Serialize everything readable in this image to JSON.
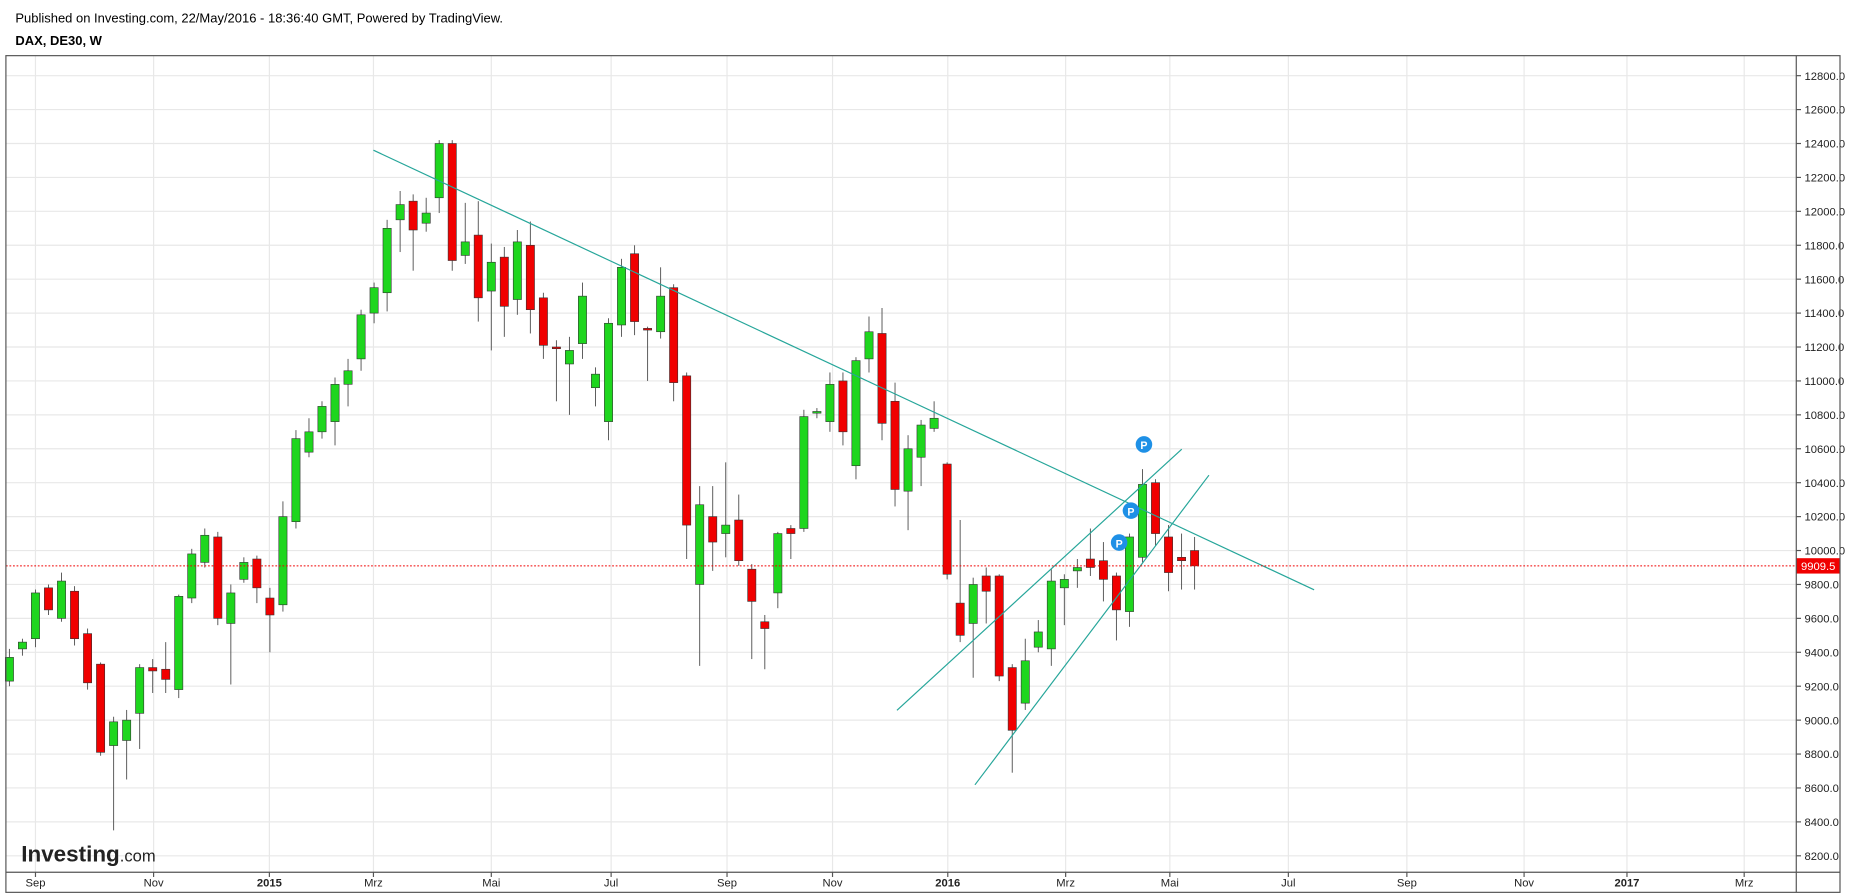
{
  "header": {
    "published": "Published on Investing.com, 22/May/2016 - 18:36:40 GMT, Powered by TradingView.",
    "symbol": "DAX, DE30, W"
  },
  "chart_data": {
    "type": "candlestick",
    "watermark": [
      "Investing",
      ".com"
    ],
    "up_color": "#1ed61e",
    "down_color": "#f00000",
    "grid": true,
    "open": [
      9230,
      9420,
      9480,
      9780,
      9600,
      9760,
      9510,
      9330,
      8850,
      8880,
      9040,
      9310,
      9300,
      9180,
      9720,
      9930,
      10080,
      9570,
      9830,
      9950,
      9720,
      9680,
      10170,
      10580,
      10700,
      10760,
      10980,
      11130,
      11400,
      11520,
      11950,
      12060,
      11930,
      12080,
      12400,
      11740,
      11860,
      11530,
      11730,
      11480,
      11800,
      11490,
      11200,
      11100,
      11220,
      10960,
      10760,
      11330,
      11750,
      11310,
      11290,
      11550,
      11030,
      9800,
      10200,
      10100,
      10180,
      9890,
      9580,
      9750,
      10130,
      10130,
      10810,
      10760,
      11000,
      10500,
      11130,
      11280,
      10880,
      10350,
      10550,
      10720,
      10510,
      9690,
      9570,
      9850,
      9850,
      9310,
      9100,
      9430,
      9420,
      9780,
      9880,
      9950,
      9940,
      9850,
      9640,
      9960,
      10400,
      10080,
      9960,
      10000
    ],
    "high": [
      9420,
      9480,
      9770,
      9800,
      9870,
      9790,
      9540,
      9340,
      9020,
      9060,
      9330,
      9360,
      9460,
      9740,
      10010,
      10130,
      10110,
      9800,
      9960,
      9970,
      9780,
      10290,
      10710,
      10780,
      10880,
      11020,
      11130,
      11420,
      11580,
      11950,
      12120,
      12100,
      12080,
      12420,
      12420,
      12050,
      12060,
      11810,
      11790,
      11890,
      11940,
      11520,
      11240,
      11260,
      11580,
      11080,
      11370,
      11720,
      11800,
      11320,
      11670,
      11570,
      11050,
      10380,
      10380,
      10520,
      10330,
      9920,
      9620,
      10110,
      10150,
      10830,
      10840,
      11050,
      11050,
      11140,
      11380,
      11430,
      10990,
      10680,
      10770,
      10880,
      10520,
      10180,
      9840,
      9900,
      9860,
      9330,
      9480,
      9590,
      9890,
      9860,
      9950,
      10130,
      10050,
      9870,
      10100,
      10480,
      10420,
      10150,
      10100,
      10080
    ],
    "low": [
      9200,
      9380,
      9430,
      9620,
      9580,
      9440,
      9180,
      8790,
      8350,
      8650,
      8830,
      9160,
      9160,
      9130,
      9690,
      9900,
      9560,
      9210,
      9810,
      9690,
      9400,
      9640,
      10130,
      10550,
      10660,
      10620,
      10850,
      11060,
      11340,
      11410,
      11760,
      11650,
      11880,
      11990,
      11650,
      11690,
      11350,
      11180,
      11260,
      11390,
      11280,
      11130,
      10880,
      10800,
      11130,
      10850,
      10650,
      11260,
      11270,
      11000,
      11250,
      10880,
      9950,
      9320,
      9880,
      9960,
      9910,
      9360,
      9300,
      9660,
      9950,
      10110,
      10780,
      10700,
      10620,
      10420,
      11050,
      10650,
      10260,
      10120,
      10380,
      10700,
      9830,
      9460,
      9250,
      9570,
      9230,
      8690,
      9060,
      9400,
      9320,
      9560,
      9780,
      9850,
      9700,
      9470,
      9550,
      9930,
      10030,
      9760,
      9770,
      9770
    ],
    "close": [
      9370,
      9460,
      9750,
      9650,
      9820,
      9480,
      9220,
      8810,
      8990,
      9000,
      9310,
      9290,
      9240,
      9730,
      9980,
      10090,
      9600,
      9750,
      9930,
      9780,
      9620,
      10200,
      10660,
      10700,
      10850,
      10980,
      11060,
      11390,
      11550,
      11900,
      12040,
      11890,
      11990,
      12400,
      11710,
      11820,
      11490,
      11700,
      11440,
      11820,
      11420,
      11210,
      11190,
      11180,
      11500,
      11040,
      11340,
      11670,
      11350,
      11300,
      11500,
      10990,
      10150,
      10270,
      10050,
      10150,
      9940,
      9700,
      9540,
      10100,
      10100,
      10790,
      10820,
      10980,
      10700,
      11120,
      11290,
      10750,
      10360,
      10600,
      10740,
      10780,
      9860,
      9500,
      9800,
      9760,
      9260,
      8940,
      9350,
      9520,
      9820,
      9830,
      9900,
      9900,
      9830,
      9650,
      10080,
      10390,
      10100,
      9870,
      9940,
      9909.5
    ],
    "last_price": 9909.5,
    "annotations": [
      "P",
      "P",
      "P"
    ],
    "ylim": [
      8103,
      12918
    ],
    "yticks": [
      {
        "value": 8200,
        "label": "8200.0"
      },
      {
        "value": 8400,
        "label": "8400.0"
      },
      {
        "value": 8600,
        "label": "8600.0"
      },
      {
        "value": 8800,
        "label": "8800.0"
      },
      {
        "value": 9000,
        "label": "9000.0"
      },
      {
        "value": 9200,
        "label": "9200.0"
      },
      {
        "value": 9400,
        "label": "9400.0"
      },
      {
        "value": 9600,
        "label": "9600.0"
      },
      {
        "value": 9800,
        "label": "9800.0"
      },
      {
        "value": 10000,
        "label": "10000.0"
      },
      {
        "value": 10200,
        "label": "10200.0"
      },
      {
        "value": 10400,
        "label": "10400.0"
      },
      {
        "value": 10600,
        "label": "10600.0"
      },
      {
        "value": 10800,
        "label": "10800.0"
      },
      {
        "value": 11000,
        "label": "11000.0"
      },
      {
        "value": 11200,
        "label": "11200.0"
      },
      {
        "value": 11400,
        "label": "11400.0"
      },
      {
        "value": 11600,
        "label": "11600.0"
      },
      {
        "value": 11800,
        "label": "11800.0"
      },
      {
        "value": 12000,
        "label": "12000.0"
      },
      {
        "value": 12200,
        "label": "12200.0"
      },
      {
        "value": 12400,
        "label": "12400.0"
      },
      {
        "value": 12600,
        "label": "12600.0"
      },
      {
        "value": 12800,
        "label": "12800.0"
      }
    ],
    "xlim": [
      -0.27,
      137.2
    ],
    "xticks": [
      {
        "value": 2.0,
        "label": "Sep"
      },
      {
        "value": 11.07,
        "label": "Nov"
      },
      {
        "value": 19.96,
        "label": "2015"
      },
      {
        "value": 27.95,
        "label": "Mrz"
      },
      {
        "value": 37.0,
        "label": "Mai"
      },
      {
        "value": 46.2,
        "label": "Jul"
      },
      {
        "value": 55.1,
        "label": "Sep"
      },
      {
        "value": 63.2,
        "label": "Nov"
      },
      {
        "value": 72.05,
        "label": "2016"
      },
      {
        "value": 81.1,
        "label": "Mrz"
      },
      {
        "value": 89.1,
        "label": "Mai"
      },
      {
        "value": 98.2,
        "label": "Jul"
      },
      {
        "value": 107.3,
        "label": "Sep"
      },
      {
        "value": 116.3,
        "label": "Nov"
      },
      {
        "value": 124.2,
        "label": "2017"
      },
      {
        "value": 133.2,
        "label": "Mrz"
      }
    ]
  }
}
